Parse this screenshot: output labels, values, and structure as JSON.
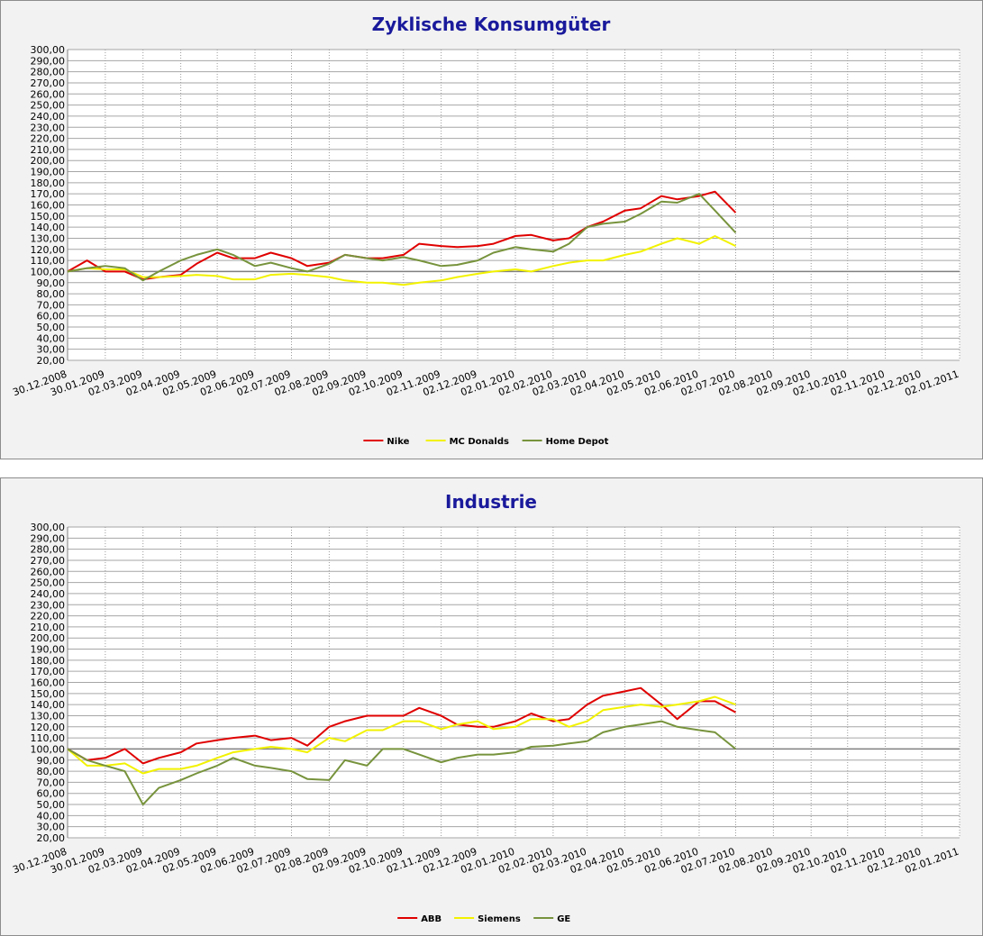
{
  "chart_data": [
    {
      "type": "line",
      "title": "Zyklische Konsumgüter",
      "x": [
        "30.12.2008",
        "15.01.2009",
        "30.01.2009",
        "15.02.2009",
        "02.03.2009",
        "15.03.2009",
        "02.04.2009",
        "15.04.2009",
        "02.05.2009",
        "15.05.2009",
        "02.06.2009",
        "15.06.2009",
        "02.07.2009",
        "15.07.2009",
        "02.08.2009",
        "15.08.2009",
        "02.09.2009",
        "15.09.2009",
        "02.10.2009",
        "15.10.2009",
        "02.11.2009",
        "15.11.2009",
        "02.12.2009",
        "15.12.2009",
        "02.01.2010",
        "15.01.2010",
        "02.02.2010",
        "15.02.2010",
        "02.03.2010",
        "15.03.2010",
        "02.04.2010",
        "15.04.2010",
        "02.05.2010",
        "15.05.2010",
        "02.06.2010",
        "15.06.2010",
        "02.07.2010"
      ],
      "series": [
        {
          "name": "Nike",
          "color": "#e00000",
          "values": [
            100,
            110,
            100,
            100,
            93,
            95,
            97,
            107,
            117,
            112,
            112,
            117,
            112,
            105,
            108,
            115,
            112,
            112,
            115,
            125,
            123,
            122,
            123,
            125,
            132,
            133,
            128,
            130,
            140,
            145,
            155,
            157,
            168,
            165,
            168,
            172,
            153
          ]
        },
        {
          "name": "MC Donalds",
          "color": "#f2f200",
          "values": [
            100,
            103,
            102,
            102,
            95,
            95,
            96,
            97,
            96,
            93,
            93,
            97,
            98,
            97,
            95,
            92,
            90,
            90,
            88,
            90,
            92,
            95,
            98,
            100,
            102,
            100,
            105,
            108,
            110,
            110,
            115,
            118,
            125,
            130,
            125,
            132,
            123
          ]
        },
        {
          "name": "Home Depot",
          "color": "#77933c",
          "values": [
            100,
            103,
            105,
            103,
            92,
            100,
            110,
            115,
            120,
            115,
            105,
            108,
            103,
            100,
            107,
            115,
            112,
            110,
            113,
            110,
            105,
            106,
            110,
            117,
            122,
            120,
            118,
            125,
            140,
            143,
            145,
            152,
            163,
            162,
            170,
            155,
            135
          ]
        }
      ],
      "xlim": [
        "30.12.2008",
        "02.01.2011"
      ],
      "xticks": [
        "30.12.2008",
        "30.01.2009",
        "02.03.2009",
        "02.04.2009",
        "02.05.2009",
        "02.06.2009",
        "02.07.2009",
        "02.08.2009",
        "02.09.2009",
        "02.10.2009",
        "02.11.2009",
        "02.12.2009",
        "02.01.2010",
        "02.02.2010",
        "02.03.2010",
        "02.04.2010",
        "02.05.2010",
        "02.06.2010",
        "02.07.2010",
        "02.08.2010",
        "02.09.2010",
        "02.10.2010",
        "02.11.2010",
        "02.12.2010",
        "02.01.2011"
      ],
      "ylim": [
        20,
        300
      ],
      "yticks": [
        {
          "value": 20,
          "label": "20,00"
        },
        {
          "value": 30,
          "label": "30,00"
        },
        {
          "value": 40,
          "label": "40,00"
        },
        {
          "value": 50,
          "label": "50,00"
        },
        {
          "value": 60,
          "label": "60,00"
        },
        {
          "value": 70,
          "label": "70,00"
        },
        {
          "value": 80,
          "label": "80,00"
        },
        {
          "value": 90,
          "label": "90,00"
        },
        {
          "value": 100,
          "label": "100,00"
        },
        {
          "value": 110,
          "label": "110,00"
        },
        {
          "value": 120,
          "label": "120,00"
        },
        {
          "value": 130,
          "label": "130,00"
        },
        {
          "value": 140,
          "label": "140,00"
        },
        {
          "value": 150,
          "label": "150,00"
        },
        {
          "value": 160,
          "label": "160,00"
        },
        {
          "value": 170,
          "label": "170,00"
        },
        {
          "value": 180,
          "label": "180,00"
        },
        {
          "value": 190,
          "label": "190,00"
        },
        {
          "value": 200,
          "label": "200,00"
        },
        {
          "value": 210,
          "label": "210,00"
        },
        {
          "value": 220,
          "label": "220,00"
        },
        {
          "value": 230,
          "label": "230,00"
        },
        {
          "value": 240,
          "label": "240,00"
        },
        {
          "value": 250,
          "label": "250,00"
        },
        {
          "value": 260,
          "label": "260,00"
        },
        {
          "value": 270,
          "label": "270,00"
        },
        {
          "value": 280,
          "label": "280,00"
        },
        {
          "value": 290,
          "label": "290,00"
        },
        {
          "value": 300,
          "label": "300,00"
        }
      ],
      "x_axis_crosses": 100,
      "grid": true,
      "legend": "bottom"
    },
    {
      "type": "line",
      "title": "Industrie",
      "x": [
        "30.12.2008",
        "15.01.2009",
        "30.01.2009",
        "15.02.2009",
        "02.03.2009",
        "15.03.2009",
        "02.04.2009",
        "15.04.2009",
        "02.05.2009",
        "15.05.2009",
        "02.06.2009",
        "15.06.2009",
        "02.07.2009",
        "15.07.2009",
        "02.08.2009",
        "15.08.2009",
        "02.09.2009",
        "15.09.2009",
        "02.10.2009",
        "15.10.2009",
        "02.11.2009",
        "15.11.2009",
        "02.12.2009",
        "15.12.2009",
        "02.01.2010",
        "15.01.2010",
        "02.02.2010",
        "15.02.2010",
        "02.03.2010",
        "15.03.2010",
        "02.04.2010",
        "15.04.2010",
        "02.05.2010",
        "15.05.2010",
        "02.06.2010",
        "15.06.2010",
        "02.07.2010"
      ],
      "series": [
        {
          "name": "ABB",
          "color": "#e00000",
          "values": [
            100,
            90,
            92,
            100,
            87,
            92,
            97,
            105,
            108,
            110,
            112,
            108,
            110,
            103,
            120,
            125,
            130,
            130,
            130,
            137,
            130,
            122,
            120,
            120,
            125,
            132,
            125,
            127,
            140,
            148,
            152,
            155,
            140,
            127,
            143,
            143,
            133
          ]
        },
        {
          "name": "Siemens",
          "color": "#f2f200",
          "values": [
            100,
            85,
            85,
            87,
            78,
            82,
            82,
            85,
            92,
            97,
            100,
            102,
            100,
            97,
            110,
            107,
            117,
            117,
            125,
            125,
            118,
            122,
            125,
            118,
            120,
            127,
            127,
            120,
            125,
            135,
            138,
            140,
            138,
            140,
            143,
            147,
            140
          ]
        },
        {
          "name": "GE",
          "color": "#77933c",
          "values": [
            100,
            90,
            85,
            80,
            50,
            65,
            72,
            78,
            85,
            92,
            85,
            83,
            80,
            73,
            72,
            90,
            85,
            100,
            100,
            95,
            88,
            92,
            95,
            95,
            97,
            102,
            103,
            105,
            107,
            115,
            120,
            122,
            125,
            120,
            117,
            115,
            100
          ]
        }
      ],
      "xlim": [
        "30.12.2008",
        "02.01.2011"
      ],
      "xticks": [
        "30.12.2008",
        "30.01.2009",
        "02.03.2009",
        "02.04.2009",
        "02.05.2009",
        "02.06.2009",
        "02.07.2009",
        "02.08.2009",
        "02.09.2009",
        "02.10.2009",
        "02.11.2009",
        "02.12.2009",
        "02.01.2010",
        "02.02.2010",
        "02.03.2010",
        "02.04.2010",
        "02.05.2010",
        "02.06.2010",
        "02.07.2010",
        "02.08.2010",
        "02.09.2010",
        "02.10.2010",
        "02.11.2010",
        "02.12.2010",
        "02.01.2011"
      ],
      "ylim": [
        20,
        300
      ],
      "yticks": [
        {
          "value": 20,
          "label": "20,00"
        },
        {
          "value": 30,
          "label": "30,00"
        },
        {
          "value": 40,
          "label": "40,00"
        },
        {
          "value": 50,
          "label": "50,00"
        },
        {
          "value": 60,
          "label": "60,00"
        },
        {
          "value": 70,
          "label": "70,00"
        },
        {
          "value": 80,
          "label": "80,00"
        },
        {
          "value": 90,
          "label": "90,00"
        },
        {
          "value": 100,
          "label": "100,00"
        },
        {
          "value": 110,
          "label": "110,00"
        },
        {
          "value": 120,
          "label": "120,00"
        },
        {
          "value": 130,
          "label": "130,00"
        },
        {
          "value": 140,
          "label": "140,00"
        },
        {
          "value": 150,
          "label": "150,00"
        },
        {
          "value": 160,
          "label": "160,00"
        },
        {
          "value": 170,
          "label": "170,00"
        },
        {
          "value": 180,
          "label": "180,00"
        },
        {
          "value": 190,
          "label": "190,00"
        },
        {
          "value": 200,
          "label": "200,00"
        },
        {
          "value": 210,
          "label": "210,00"
        },
        {
          "value": 220,
          "label": "220,00"
        },
        {
          "value": 230,
          "label": "230,00"
        },
        {
          "value": 240,
          "label": "240,00"
        },
        {
          "value": 250,
          "label": "250,00"
        },
        {
          "value": 260,
          "label": "260,00"
        },
        {
          "value": 270,
          "label": "270,00"
        },
        {
          "value": 280,
          "label": "280,00"
        },
        {
          "value": 290,
          "label": "290,00"
        },
        {
          "value": 300,
          "label": "300,00"
        }
      ],
      "x_axis_crosses": 100,
      "grid": true,
      "legend": "bottom"
    }
  ]
}
